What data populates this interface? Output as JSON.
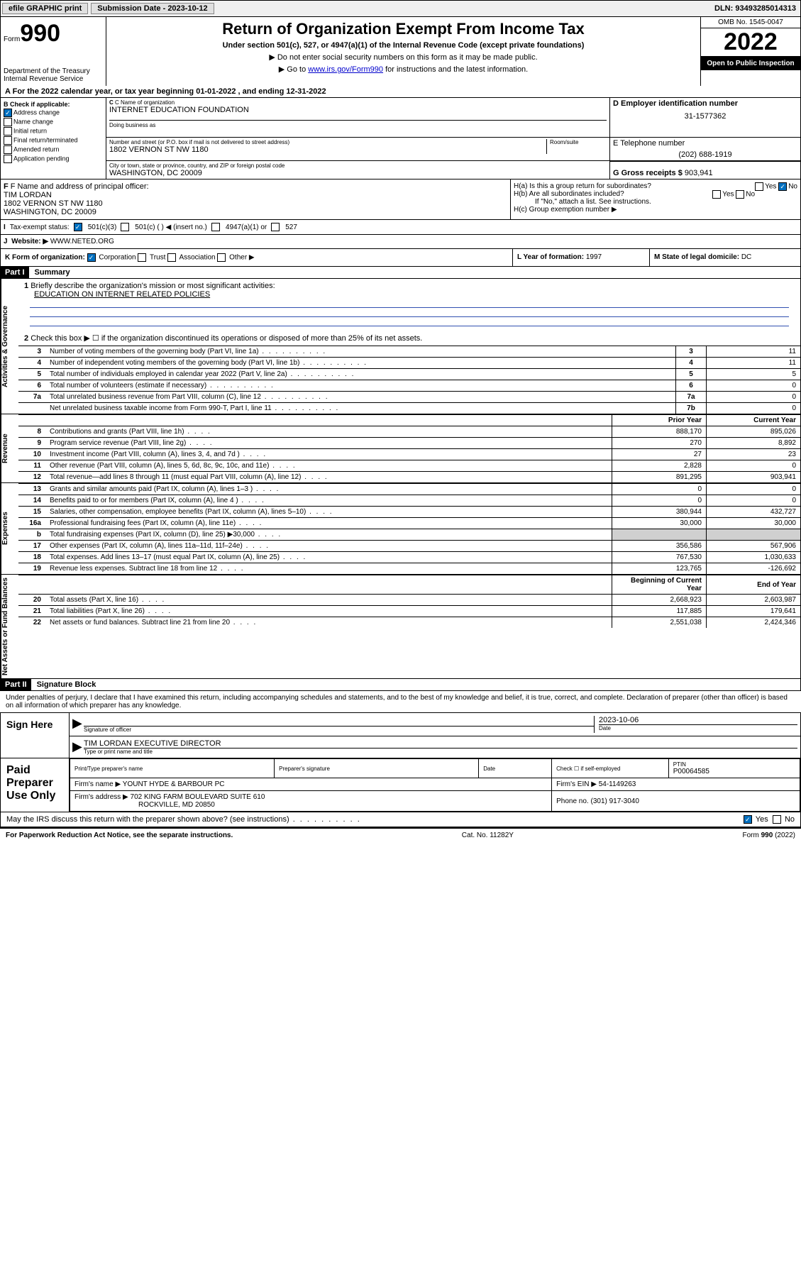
{
  "top": {
    "efile": "efile GRAPHIC print",
    "submission_label": "Submission Date - 2023-10-12",
    "dln": "DLN: 93493285014313"
  },
  "header": {
    "form_word": "Form",
    "form_num": "990",
    "dept": "Department of the Treasury",
    "irs": "Internal Revenue Service",
    "title": "Return of Organization Exempt From Income Tax",
    "sub1": "Under section 501(c), 527, or 4947(a)(1) of the Internal Revenue Code (except private foundations)",
    "sub2": "▶ Do not enter social security numbers on this form as it may be made public.",
    "sub3_pre": "▶ Go to ",
    "sub3_link": "www.irs.gov/Form990",
    "sub3_post": " for instructions and the latest information.",
    "omb": "OMB No. 1545-0047",
    "year": "2022",
    "open": "Open to Public Inspection"
  },
  "lineA": "For the 2022 calendar year, or tax year beginning 01-01-2022   , and ending 12-31-2022",
  "boxB": {
    "title": "B Check if applicable:",
    "items": [
      "Address change",
      "Name change",
      "Initial return",
      "Final return/terminated",
      "Amended return",
      "Application pending"
    ],
    "checked_index": 0
  },
  "boxC": {
    "lbl": "C Name of organization",
    "name": "INTERNET EDUCATION FOUNDATION",
    "dba_lbl": "Doing business as",
    "addr_lbl": "Number and street (or P.O. box if mail is not delivered to street address)",
    "room_lbl": "Room/suite",
    "addr": "1802 VERNON ST NW 1180",
    "city_lbl": "City or town, state or province, country, and ZIP or foreign postal code",
    "city": "WASHINGTON, DC  20009"
  },
  "boxD": {
    "lbl": "D Employer identification number",
    "val": "31-1577362"
  },
  "boxE": {
    "lbl": "E Telephone number",
    "val": "(202) 688-1919"
  },
  "boxG": {
    "lbl": "G Gross receipts $",
    "val": "903,941"
  },
  "boxF": {
    "lbl": "F Name and address of principal officer:",
    "name": "TIM LORDAN",
    "addr1": "1802 VERNON ST NW 1180",
    "addr2": "WASHINGTON, DC  20009"
  },
  "boxH": {
    "a": "H(a)  Is this a group return for subordinates?",
    "b": "H(b)  Are all subordinates included?",
    "b_note": "If \"No,\" attach a list. See instructions.",
    "c": "H(c)  Group exemption number ▶",
    "yes": "Yes",
    "no": "No"
  },
  "lineI": {
    "lbl": "Tax-exempt status:",
    "opt1": "501(c)(3)",
    "opt2": "501(c) (  ) ◀ (insert no.)",
    "opt3": "4947(a)(1) or",
    "opt4": "527"
  },
  "lineJ": {
    "lbl": "Website: ▶",
    "val": "WWW.NETED.ORG"
  },
  "lineK": {
    "lbl": "K Form of organization:",
    "opts": [
      "Corporation",
      "Trust",
      "Association",
      "Other ▶"
    ],
    "checked": 0
  },
  "lineL": {
    "lbl": "L Year of formation:",
    "val": "1997"
  },
  "lineM": {
    "lbl": "M State of legal domicile:",
    "val": "DC"
  },
  "part1": {
    "header": "Part I",
    "title": "Summary",
    "q1": "Briefly describe the organization's mission or most significant activities:",
    "q1_ans": "EDUCATION ON INTERNET RELATED POLICIES",
    "q2": "Check this box ▶ ☐  if the organization discontinued its operations or disposed of more than 25% of its net assets.",
    "vtab_gov": "Activities & Governance",
    "vtab_rev": "Revenue",
    "vtab_exp": "Expenses",
    "vtab_net": "Net Assets or Fund Balances",
    "gov_rows": [
      {
        "n": "3",
        "d": "Number of voting members of the governing body (Part VI, line 1a)",
        "box": "3",
        "v": "11"
      },
      {
        "n": "4",
        "d": "Number of independent voting members of the governing body (Part VI, line 1b)",
        "box": "4",
        "v": "11"
      },
      {
        "n": "5",
        "d": "Total number of individuals employed in calendar year 2022 (Part V, line 2a)",
        "box": "5",
        "v": "5"
      },
      {
        "n": "6",
        "d": "Total number of volunteers (estimate if necessary)",
        "box": "6",
        "v": "0"
      },
      {
        "n": "7a",
        "d": "Total unrelated business revenue from Part VIII, column (C), line 12",
        "box": "7a",
        "v": "0"
      },
      {
        "n": "",
        "d": "Net unrelated business taxable income from Form 990-T, Part I, line 11",
        "box": "7b",
        "v": "0"
      }
    ],
    "col_prior": "Prior Year",
    "col_current": "Current Year",
    "rev_rows": [
      {
        "n": "8",
        "d": "Contributions and grants (Part VIII, line 1h)",
        "p": "888,170",
        "c": "895,026"
      },
      {
        "n": "9",
        "d": "Program service revenue (Part VIII, line 2g)",
        "p": "270",
        "c": "8,892"
      },
      {
        "n": "10",
        "d": "Investment income (Part VIII, column (A), lines 3, 4, and 7d )",
        "p": "27",
        "c": "23"
      },
      {
        "n": "11",
        "d": "Other revenue (Part VIII, column (A), lines 5, 6d, 8c, 9c, 10c, and 11e)",
        "p": "2,828",
        "c": "0"
      },
      {
        "n": "12",
        "d": "Total revenue—add lines 8 through 11 (must equal Part VIII, column (A), line 12)",
        "p": "891,295",
        "c": "903,941"
      }
    ],
    "exp_rows": [
      {
        "n": "13",
        "d": "Grants and similar amounts paid (Part IX, column (A), lines 1–3 )",
        "p": "0",
        "c": "0"
      },
      {
        "n": "14",
        "d": "Benefits paid to or for members (Part IX, column (A), line 4 )",
        "p": "0",
        "c": "0"
      },
      {
        "n": "15",
        "d": "Salaries, other compensation, employee benefits (Part IX, column (A), lines 5–10)",
        "p": "380,944",
        "c": "432,727"
      },
      {
        "n": "16a",
        "d": "Professional fundraising fees (Part IX, column (A), line 11e)",
        "p": "30,000",
        "c": "30,000"
      },
      {
        "n": "b",
        "d": "Total fundraising expenses (Part IX, column (D), line 25) ▶30,000",
        "p": "",
        "c": "",
        "shaded": true
      },
      {
        "n": "17",
        "d": "Other expenses (Part IX, column (A), lines 11a–11d, 11f–24e)",
        "p": "356,586",
        "c": "567,906"
      },
      {
        "n": "18",
        "d": "Total expenses. Add lines 13–17 (must equal Part IX, column (A), line 25)",
        "p": "767,530",
        "c": "1,030,633"
      },
      {
        "n": "19",
        "d": "Revenue less expenses. Subtract line 18 from line 12",
        "p": "123,765",
        "c": "-126,692"
      }
    ],
    "col_begin": "Beginning of Current Year",
    "col_end": "End of Year",
    "net_rows": [
      {
        "n": "20",
        "d": "Total assets (Part X, line 16)",
        "p": "2,668,923",
        "c": "2,603,987"
      },
      {
        "n": "21",
        "d": "Total liabilities (Part X, line 26)",
        "p": "117,885",
        "c": "179,641"
      },
      {
        "n": "22",
        "d": "Net assets or fund balances. Subtract line 21 from line 20",
        "p": "2,551,038",
        "c": "2,424,346"
      }
    ]
  },
  "part2": {
    "header": "Part II",
    "title": "Signature Block",
    "decl": "Under penalties of perjury, I declare that I have examined this return, including accompanying schedules and statements, and to the best of my knowledge and belief, it is true, correct, and complete. Declaration of preparer (other than officer) is based on all information of which preparer has any knowledge.",
    "sign_here": "Sign Here",
    "sig_officer": "Signature of officer",
    "date_lbl": "Date",
    "date_val": "2023-10-06",
    "name_title": "TIM LORDAN  EXECUTIVE DIRECTOR",
    "name_lbl": "Type or print name and title",
    "paid": "Paid Preparer Use Only",
    "prep_name_lbl": "Print/Type preparer's name",
    "prep_sig_lbl": "Preparer's signature",
    "prep_date_lbl": "Date",
    "check_self": "Check ☐ if self-employed",
    "ptin_lbl": "PTIN",
    "ptin": "P00064585",
    "firm_name_lbl": "Firm's name   ▶",
    "firm_name": "YOUNT HYDE & BARBOUR PC",
    "firm_ein_lbl": "Firm's EIN ▶",
    "firm_ein": "54-1149263",
    "firm_addr_lbl": "Firm's address ▶",
    "firm_addr1": "702 KING FARM BOULEVARD SUITE 610",
    "firm_addr2": "ROCKVILLE, MD  20850",
    "phone_lbl": "Phone no.",
    "phone": "(301) 917-3040",
    "discuss": "May the IRS discuss this return with the preparer shown above? (see instructions)",
    "yes": "Yes",
    "no": "No"
  },
  "footer": {
    "left": "For Paperwork Reduction Act Notice, see the separate instructions.",
    "mid": "Cat. No. 11282Y",
    "right": "Form 990 (2022)"
  }
}
